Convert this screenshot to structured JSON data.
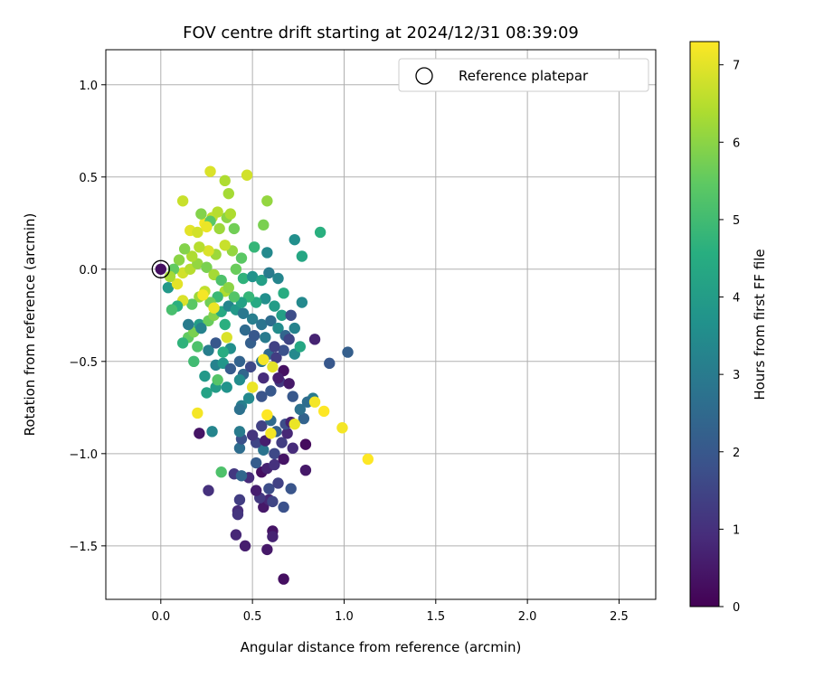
{
  "chart_data": {
    "type": "scatter",
    "title": "FOV centre drift starting at 2024/12/31 08:39:09",
    "xlabel": "Angular distance from reference (arcmin)",
    "ylabel": "Rotation from reference (arcmin)",
    "xlim": [
      -0.3,
      2.7
    ],
    "ylim": [
      -1.79,
      1.19
    ],
    "xticks": [
      0.0,
      0.5,
      1.0,
      1.5,
      2.0,
      2.5
    ],
    "xtick_labels": [
      "0.0",
      "0.5",
      "1.0",
      "1.5",
      "2.0",
      "2.5"
    ],
    "yticks": [
      1.0,
      0.5,
      0.0,
      -0.5,
      -1.0,
      -1.5
    ],
    "ytick_labels": [
      "1.0",
      "0.5",
      "0.0",
      "−0.5",
      "−1.0",
      "−1.5"
    ],
    "grid": true,
    "legend": {
      "position": "top-right",
      "entries": [
        "Reference platepar"
      ]
    },
    "reference_point": {
      "x": 0.0,
      "y": 0.0,
      "label": "Reference platepar"
    },
    "colorbar": {
      "label": "Hours from first FF file",
      "range": [
        0,
        7.3
      ],
      "ticks": [
        0,
        1,
        2,
        3,
        4,
        5,
        6,
        7
      ],
      "tick_labels": [
        "0",
        "1",
        "2",
        "3",
        "4",
        "5",
        "6",
        "7"
      ],
      "colormap": "viridis"
    },
    "points": [
      [
        0.0,
        0.0,
        0.3
      ],
      [
        0.67,
        -1.68,
        0.3
      ],
      [
        0.58,
        -1.52,
        0.5
      ],
      [
        0.46,
        -1.5,
        0.6
      ],
      [
        0.41,
        -1.44,
        0.8
      ],
      [
        0.61,
        -1.42,
        0.4
      ],
      [
        0.61,
        -1.45,
        0.7
      ],
      [
        0.42,
        -1.31,
        0.9
      ],
      [
        0.42,
        -1.33,
        1.1
      ],
      [
        0.43,
        -1.25,
        1.3
      ],
      [
        0.56,
        -1.29,
        0.5
      ],
      [
        0.59,
        -1.25,
        0.8
      ],
      [
        0.54,
        -1.24,
        1.2
      ],
      [
        0.61,
        -1.26,
        1.5
      ],
      [
        0.67,
        -1.29,
        1.8
      ],
      [
        0.26,
        -1.2,
        1.0
      ],
      [
        0.52,
        -1.2,
        0.6
      ],
      [
        0.59,
        -1.19,
        1.7
      ],
      [
        0.71,
        -1.19,
        1.9
      ],
      [
        0.64,
        -1.16,
        1.4
      ],
      [
        0.48,
        -1.13,
        0.9
      ],
      [
        0.55,
        -1.1,
        0.3
      ],
      [
        0.58,
        -1.08,
        0.7
      ],
      [
        0.62,
        -1.06,
        1.0
      ],
      [
        0.4,
        -1.11,
        1.2
      ],
      [
        0.44,
        -1.12,
        2.4
      ],
      [
        0.52,
        -1.05,
        2.1
      ],
      [
        0.62,
        -1.0,
        1.6
      ],
      [
        0.67,
        -1.03,
        0.4
      ],
      [
        0.79,
        -1.09,
        0.5
      ],
      [
        0.79,
        -0.95,
        0.2
      ],
      [
        0.72,
        -0.97,
        0.9
      ],
      [
        0.66,
        -0.94,
        1.3
      ],
      [
        0.56,
        -0.98,
        2.8
      ],
      [
        0.52,
        -0.94,
        1.5
      ],
      [
        0.43,
        -0.97,
        2.6
      ],
      [
        0.44,
        -0.92,
        1.8
      ],
      [
        0.5,
        -0.9,
        1.1
      ],
      [
        0.57,
        -0.93,
        0.6
      ],
      [
        0.63,
        -0.88,
        2.2
      ],
      [
        0.69,
        -0.89,
        0.8
      ],
      [
        0.55,
        -0.85,
        1.4
      ],
      [
        0.68,
        -0.84,
        1.7
      ],
      [
        0.71,
        -0.83,
        0.7
      ],
      [
        0.78,
        -0.81,
        2.3
      ],
      [
        0.6,
        -0.82,
        2.5
      ],
      [
        0.43,
        -0.88,
        3.0
      ],
      [
        0.28,
        -0.88,
        3.3
      ],
      [
        0.21,
        -0.89,
        0.4
      ],
      [
        0.44,
        -0.74,
        3.1
      ],
      [
        0.43,
        -0.76,
        2.7
      ],
      [
        0.48,
        -0.7,
        3.4
      ],
      [
        0.55,
        -0.69,
        1.9
      ],
      [
        0.6,
        -0.66,
        2.0
      ],
      [
        0.65,
        -0.61,
        1.2
      ],
      [
        0.7,
        -0.62,
        0.5
      ],
      [
        0.72,
        -0.69,
        2.0
      ],
      [
        0.76,
        -0.76,
        2.7
      ],
      [
        0.83,
        -0.7,
        3.0
      ],
      [
        0.8,
        -0.72,
        2.6
      ],
      [
        0.56,
        -0.59,
        0.9
      ],
      [
        0.67,
        -0.55,
        0.3
      ],
      [
        0.64,
        -0.59,
        0.6
      ],
      [
        0.45,
        -0.57,
        2.4
      ],
      [
        0.43,
        -0.6,
        3.5
      ],
      [
        0.36,
        -0.64,
        3.7
      ],
      [
        0.3,
        -0.64,
        4.0
      ],
      [
        0.25,
        -0.67,
        4.2
      ],
      [
        0.24,
        -0.58,
        3.9
      ],
      [
        0.3,
        -0.52,
        3.2
      ],
      [
        0.34,
        -0.51,
        3.8
      ],
      [
        0.38,
        -0.54,
        2.1
      ],
      [
        0.43,
        -0.5,
        2.3
      ],
      [
        0.49,
        -0.53,
        1.6
      ],
      [
        0.55,
        -0.5,
        2.8
      ],
      [
        0.59,
        -0.46,
        2.5
      ],
      [
        0.63,
        -0.48,
        1.3
      ],
      [
        0.67,
        -0.44,
        1.8
      ],
      [
        0.73,
        -0.46,
        3.4
      ],
      [
        0.76,
        -0.42,
        4.3
      ],
      [
        0.84,
        -0.38,
        0.7
      ],
      [
        0.92,
        -0.51,
        2.0
      ],
      [
        1.02,
        -0.45,
        2.2
      ],
      [
        0.38,
        -0.43,
        3.6
      ],
      [
        0.34,
        -0.45,
        4.5
      ],
      [
        0.26,
        -0.44,
        3.1
      ],
      [
        0.2,
        -0.42,
        5.2
      ],
      [
        0.15,
        -0.37,
        5.5
      ],
      [
        0.12,
        -0.4,
        4.7
      ],
      [
        0.18,
        -0.34,
        5.8
      ],
      [
        0.21,
        -0.3,
        4.0
      ],
      [
        0.26,
        -0.28,
        5.6
      ],
      [
        0.29,
        -0.25,
        5.9
      ],
      [
        0.33,
        -0.23,
        4.4
      ],
      [
        0.37,
        -0.2,
        3.3
      ],
      [
        0.41,
        -0.22,
        3.9
      ],
      [
        0.45,
        -0.24,
        2.9
      ],
      [
        0.5,
        -0.27,
        3.1
      ],
      [
        0.55,
        -0.3,
        2.8
      ],
      [
        0.6,
        -0.28,
        2.6
      ],
      [
        0.64,
        -0.32,
        3.5
      ],
      [
        0.68,
        -0.36,
        2.4
      ],
      [
        0.73,
        -0.32,
        3.2
      ],
      [
        0.77,
        -0.18,
        3.4
      ],
      [
        0.66,
        -0.25,
        4.1
      ],
      [
        0.62,
        -0.2,
        4.0
      ],
      [
        0.57,
        -0.16,
        3.6
      ],
      [
        0.52,
        -0.18,
        4.4
      ],
      [
        0.48,
        -0.15,
        4.8
      ],
      [
        0.44,
        -0.18,
        4.2
      ],
      [
        0.4,
        -0.15,
        5.3
      ],
      [
        0.35,
        -0.12,
        6.4
      ],
      [
        0.31,
        -0.15,
        4.9
      ],
      [
        0.27,
        -0.18,
        5.7
      ],
      [
        0.24,
        -0.12,
        6.6
      ],
      [
        0.21,
        -0.15,
        6.2
      ],
      [
        0.17,
        -0.19,
        5.4
      ],
      [
        0.12,
        -0.17,
        6.9
      ],
      [
        0.09,
        -0.2,
        4.6
      ],
      [
        0.06,
        -0.22,
        5.1
      ],
      [
        0.04,
        -0.1,
        3.9
      ],
      [
        0.09,
        -0.08,
        7.0
      ],
      [
        0.12,
        -0.02,
        6.8
      ],
      [
        0.16,
        0.0,
        6.5
      ],
      [
        0.2,
        0.03,
        6.1
      ],
      [
        0.25,
        0.01,
        5.8
      ],
      [
        0.29,
        -0.03,
        6.3
      ],
      [
        0.33,
        -0.06,
        5.2
      ],
      [
        0.37,
        -0.1,
        6.0
      ],
      [
        0.41,
        0.0,
        5.6
      ],
      [
        0.45,
        -0.05,
        4.7
      ],
      [
        0.5,
        -0.04,
        3.7
      ],
      [
        0.55,
        -0.06,
        4.1
      ],
      [
        0.59,
        -0.02,
        3.0
      ],
      [
        0.64,
        -0.05,
        3.3
      ],
      [
        0.67,
        -0.13,
        4.5
      ],
      [
        0.77,
        0.07,
        4.3
      ],
      [
        0.73,
        0.16,
        3.6
      ],
      [
        0.58,
        0.09,
        3.4
      ],
      [
        0.51,
        0.12,
        4.8
      ],
      [
        0.44,
        0.06,
        5.4
      ],
      [
        0.39,
        0.1,
        6.1
      ],
      [
        0.35,
        0.13,
        6.7
      ],
      [
        0.3,
        0.08,
        6.2
      ],
      [
        0.26,
        0.1,
        6.9
      ],
      [
        0.21,
        0.12,
        6.5
      ],
      [
        0.17,
        0.07,
        6.4
      ],
      [
        0.13,
        0.11,
        5.9
      ],
      [
        0.1,
        0.05,
        6.0
      ],
      [
        0.07,
        0.0,
        5.5
      ],
      [
        0.05,
        -0.04,
        6.3
      ],
      [
        0.16,
        0.21,
        7.0
      ],
      [
        0.2,
        0.2,
        6.8
      ],
      [
        0.24,
        0.25,
        7.2
      ],
      [
        0.28,
        0.28,
        6.6
      ],
      [
        0.32,
        0.22,
        6.2
      ],
      [
        0.36,
        0.28,
        6.0
      ],
      [
        0.4,
        0.22,
        5.7
      ],
      [
        0.38,
        0.3,
        6.4
      ],
      [
        0.31,
        0.31,
        6.5
      ],
      [
        0.22,
        0.3,
        5.9
      ],
      [
        0.27,
        0.26,
        5.4
      ],
      [
        0.56,
        0.24,
        5.8
      ],
      [
        0.58,
        0.37,
        6.1
      ],
      [
        0.37,
        0.41,
        6.3
      ],
      [
        0.35,
        0.48,
        6.4
      ],
      [
        0.47,
        0.51,
        6.8
      ],
      [
        0.27,
        0.53,
        6.9
      ],
      [
        0.12,
        0.37,
        6.7
      ],
      [
        0.87,
        0.2,
        4.6
      ],
      [
        0.2,
        -0.78,
        7.2
      ],
      [
        0.5,
        -0.64,
        7.1
      ],
      [
        0.58,
        -0.79,
        7.3
      ],
      [
        0.6,
        -0.89,
        7.2
      ],
      [
        0.73,
        -0.84,
        7.1
      ],
      [
        0.84,
        -0.72,
        7.2
      ],
      [
        0.89,
        -0.77,
        7.3
      ],
      [
        0.99,
        -0.86,
        7.2
      ],
      [
        1.13,
        -1.03,
        7.3
      ],
      [
        0.33,
        -1.1,
        5.2
      ],
      [
        0.36,
        -0.37,
        6.9
      ],
      [
        0.56,
        -0.49,
        7.2
      ],
      [
        0.61,
        -0.53,
        7.0
      ],
      [
        0.29,
        -0.21,
        7.1
      ],
      [
        0.23,
        -0.14,
        7.2
      ],
      [
        0.25,
        0.23,
        7.1
      ],
      [
        0.3,
        -0.4,
        2.0
      ],
      [
        0.49,
        -0.4,
        2.2
      ],
      [
        0.31,
        -0.6,
        5.3
      ],
      [
        0.18,
        -0.5,
        5.0
      ],
      [
        0.15,
        -0.3,
        3.0
      ],
      [
        0.22,
        -0.32,
        3.2
      ],
      [
        0.35,
        -0.3,
        4.6
      ],
      [
        0.46,
        -0.33,
        2.5
      ],
      [
        0.51,
        -0.36,
        2.0
      ],
      [
        0.57,
        -0.37,
        3.0
      ],
      [
        0.71,
        -0.25,
        1.7
      ],
      [
        0.7,
        -0.38,
        1.5
      ],
      [
        0.62,
        -0.42,
        1.4
      ]
    ]
  }
}
